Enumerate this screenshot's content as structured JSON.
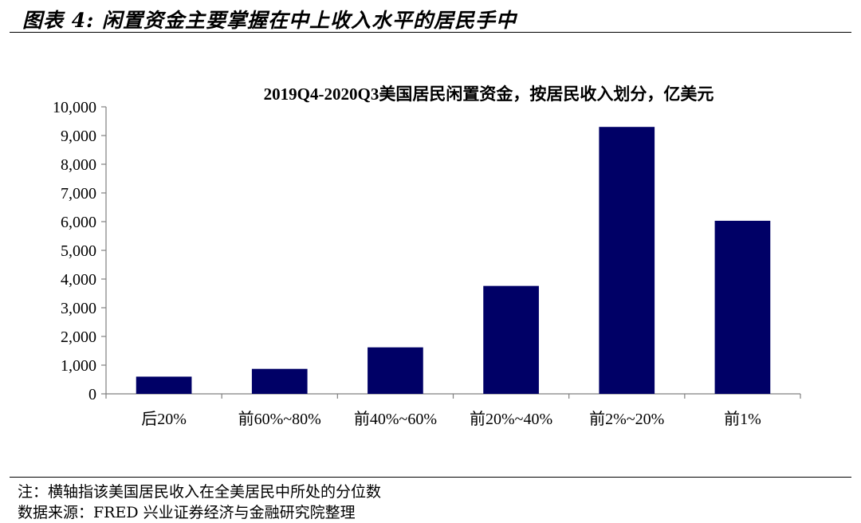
{
  "header": {
    "title": "图表 4: 闲置资金主要掌握在中上收入水平的居民手中"
  },
  "chart_data": {
    "type": "bar",
    "title": "2019Q4-2020Q3美国居民闲置资金，按居民收入划分，亿美元",
    "categories": [
      "后20%",
      "前60%~80%",
      "前40%~60%",
      "前20%~40%",
      "前2%~20%",
      "前1%"
    ],
    "values": [
      600,
      870,
      1620,
      3760,
      9300,
      6030
    ],
    "ylim": [
      0,
      10000
    ],
    "y_ticks": [
      "0",
      "1,000",
      "2,000",
      "3,000",
      "4,000",
      "5,000",
      "6,000",
      "7,000",
      "8,000",
      "9,000",
      "10,000"
    ],
    "bar_color": "#000066",
    "grid": false,
    "legend": "none"
  },
  "footer": {
    "note": "注：横轴指该美国居民收入在全美居民中所处的分位数",
    "source": "数据来源：FRED 兴业证券经济与金融研究院整理"
  }
}
